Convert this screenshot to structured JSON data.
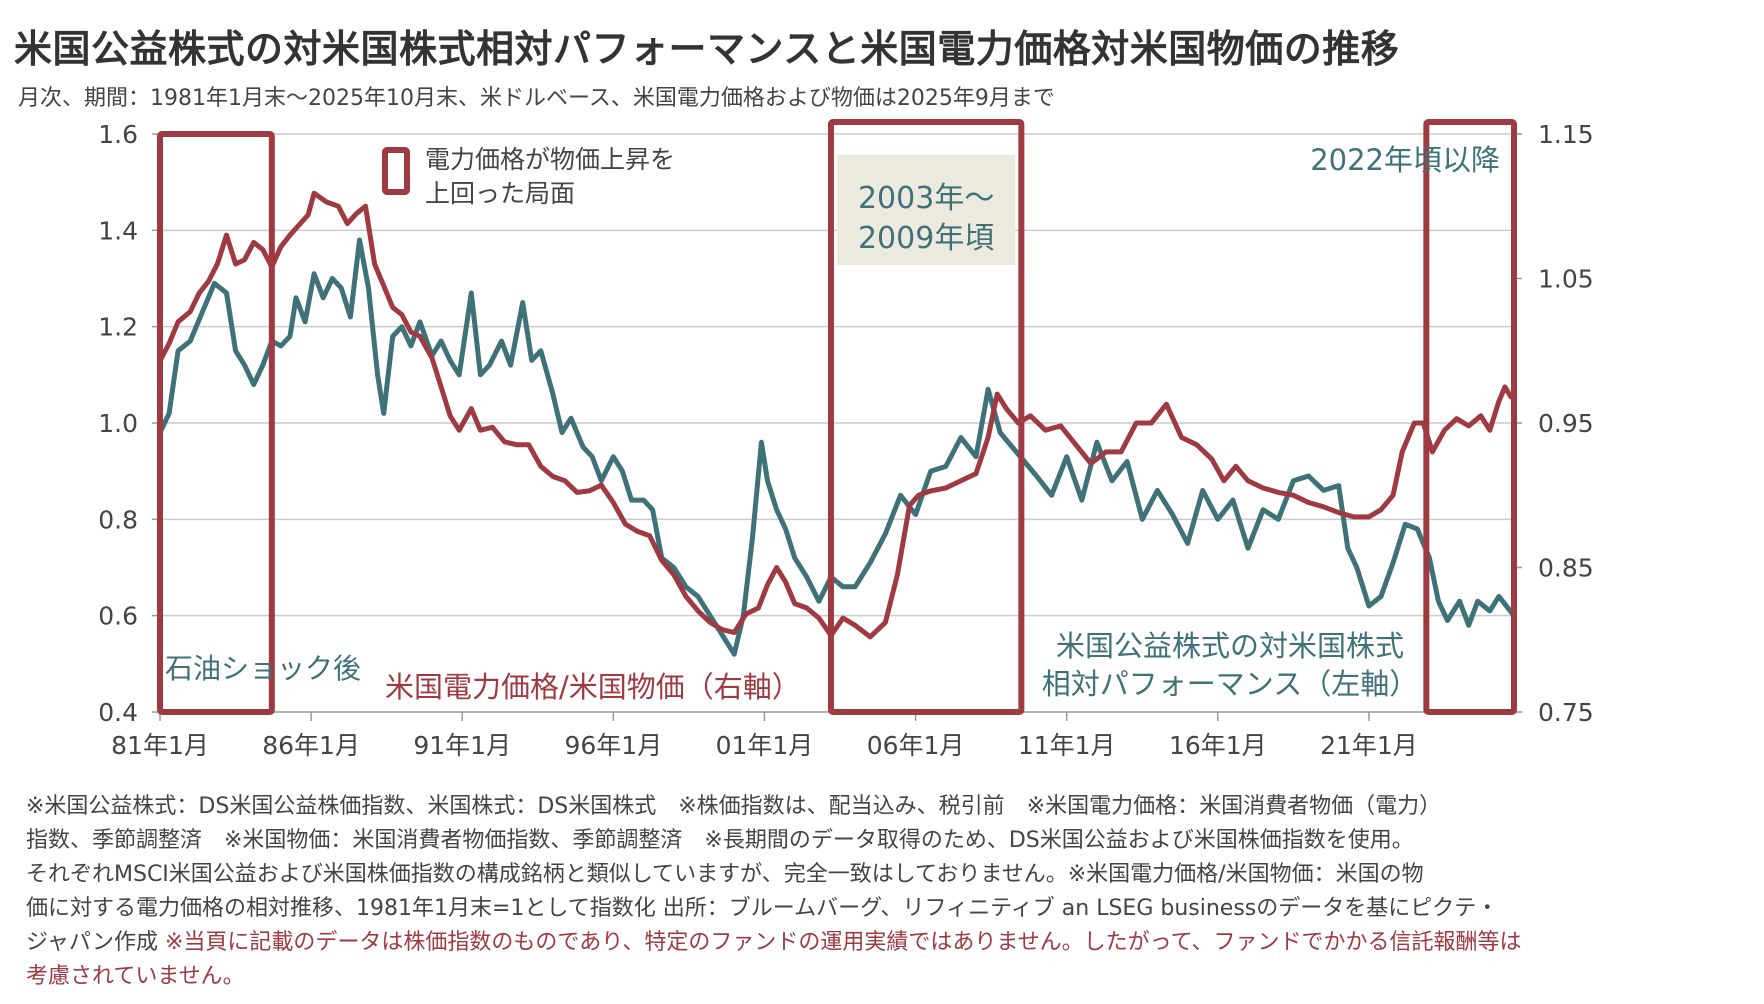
{
  "header": {
    "title": "米国公益株式の対米国株式相対パフォーマンスと米国電力価格対米国物価の推移",
    "subtitle": "月次、期間：1981年1月末～2025年10月末、米ドルベース、米国電力価格および物価は2025年9月まで"
  },
  "colors": {
    "teal": "#3f7179",
    "red": "#a03a42",
    "highlight_bg": "#ece9df",
    "grid": "#cccccc",
    "axis": "#999999"
  },
  "chart_data": {
    "type": "line",
    "title": "米国公益株式の対米国株式相対パフォーマンスと米国電力価格対米国物価の推移",
    "xlabel": "",
    "x_range": [
      1981.0,
      2025.8
    ],
    "x_ticks": [
      {
        "x": 1981.0,
        "label": "81年1月"
      },
      {
        "x": 1986.0,
        "label": "86年1月"
      },
      {
        "x": 1991.0,
        "label": "91年1月"
      },
      {
        "x": 1996.0,
        "label": "96年1月"
      },
      {
        "x": 2001.0,
        "label": "01年1月"
      },
      {
        "x": 2006.0,
        "label": "06年1月"
      },
      {
        "x": 2011.0,
        "label": "11年1月"
      },
      {
        "x": 2016.0,
        "label": "16年1月"
      },
      {
        "x": 2021.0,
        "label": "21年1月"
      }
    ],
    "y_left": {
      "range": [
        0.4,
        1.6
      ],
      "ticks": [
        "0.4",
        "0.6",
        "0.8",
        "1.0",
        "1.2",
        "1.4",
        "1.6"
      ],
      "tick_values": [
        0.4,
        0.6,
        0.8,
        1.0,
        1.2,
        1.4,
        1.6
      ]
    },
    "y_right": {
      "range": [
        0.75,
        1.15
      ],
      "ticks": [
        "0.75",
        "0.85",
        "0.95",
        "1.05",
        "1.15"
      ],
      "tick_values": [
        0.75,
        0.85,
        0.95,
        1.05,
        1.15
      ]
    },
    "grid": true,
    "series": [
      {
        "name": "米国公益株式の対米国株式相対パフォーマンス（左軸）",
        "axis": "left",
        "color": "#3f7179",
        "x": [
          1981.0,
          1981.3,
          1981.6,
          1982.0,
          1982.4,
          1982.8,
          1983.2,
          1983.5,
          1983.8,
          1984.1,
          1984.4,
          1984.7,
          1985.0,
          1985.3,
          1985.5,
          1985.8,
          1986.1,
          1986.4,
          1986.7,
          1987.0,
          1987.3,
          1987.6,
          1987.9,
          1988.2,
          1988.4,
          1988.7,
          1989.0,
          1989.3,
          1989.6,
          1990.0,
          1990.3,
          1990.6,
          1990.9,
          1991.3,
          1991.6,
          1991.9,
          1992.3,
          1992.6,
          1993.0,
          1993.3,
          1993.6,
          1994.0,
          1994.3,
          1994.6,
          1995.0,
          1995.3,
          1995.6,
          1996.0,
          1996.3,
          1996.6,
          1997.0,
          1997.3,
          1997.6,
          1998.0,
          1998.4,
          1998.8,
          1999.2,
          1999.6,
          2000.0,
          2000.3,
          2000.6,
          2000.9,
          2001.1,
          2001.4,
          2001.7,
          2002.0,
          2002.4,
          2002.8,
          2003.2,
          2003.6,
          2004.0,
          2004.5,
          2005.0,
          2005.5,
          2006.0,
          2006.5,
          2007.0,
          2007.5,
          2008.0,
          2008.4,
          2008.8,
          2009.2,
          2009.6,
          2010.0,
          2010.5,
          2011.0,
          2011.5,
          2012.0,
          2012.5,
          2013.0,
          2013.5,
          2014.0,
          2014.5,
          2015.0,
          2015.5,
          2016.0,
          2016.5,
          2017.0,
          2017.5,
          2018.0,
          2018.5,
          2019.0,
          2019.5,
          2020.0,
          2020.3,
          2020.6,
          2021.0,
          2021.4,
          2021.8,
          2022.2,
          2022.6,
          2023.0,
          2023.3,
          2023.6,
          2024.0,
          2024.3,
          2024.6,
          2025.0,
          2025.3,
          2025.8
        ],
        "values": [
          0.98,
          1.02,
          1.15,
          1.17,
          1.23,
          1.29,
          1.27,
          1.15,
          1.12,
          1.08,
          1.12,
          1.17,
          1.16,
          1.18,
          1.26,
          1.21,
          1.31,
          1.26,
          1.3,
          1.28,
          1.22,
          1.38,
          1.28,
          1.1,
          1.02,
          1.18,
          1.2,
          1.16,
          1.21,
          1.14,
          1.17,
          1.13,
          1.1,
          1.27,
          1.1,
          1.12,
          1.17,
          1.12,
          1.25,
          1.13,
          1.15,
          1.06,
          0.98,
          1.01,
          0.95,
          0.93,
          0.88,
          0.93,
          0.9,
          0.84,
          0.84,
          0.82,
          0.72,
          0.7,
          0.66,
          0.64,
          0.6,
          0.56,
          0.52,
          0.6,
          0.76,
          0.96,
          0.88,
          0.82,
          0.78,
          0.72,
          0.68,
          0.63,
          0.68,
          0.66,
          0.66,
          0.71,
          0.77,
          0.85,
          0.81,
          0.9,
          0.91,
          0.97,
          0.93,
          1.07,
          0.98,
          0.95,
          0.92,
          0.89,
          0.85,
          0.93,
          0.84,
          0.96,
          0.88,
          0.92,
          0.8,
          0.86,
          0.81,
          0.75,
          0.86,
          0.8,
          0.84,
          0.74,
          0.82,
          0.8,
          0.88,
          0.89,
          0.86,
          0.87,
          0.74,
          0.7,
          0.62,
          0.64,
          0.71,
          0.79,
          0.78,
          0.72,
          0.63,
          0.59,
          0.63,
          0.58,
          0.63,
          0.61,
          0.64,
          0.6
        ]
      },
      {
        "name": "米国電力価格/米国物価（右軸）",
        "axis": "right",
        "color": "#a03a42",
        "x": [
          1981.0,
          1981.3,
          1981.6,
          1982.0,
          1982.3,
          1982.6,
          1982.9,
          1983.2,
          1983.5,
          1983.8,
          1984.1,
          1984.4,
          1984.7,
          1985.0,
          1985.3,
          1985.6,
          1985.9,
          1986.1,
          1986.5,
          1986.9,
          1987.2,
          1987.5,
          1987.8,
          1988.1,
          1988.4,
          1988.7,
          1989.0,
          1989.3,
          1989.6,
          1990.0,
          1990.3,
          1990.6,
          1990.9,
          1991.3,
          1991.6,
          1992.0,
          1992.4,
          1992.8,
          1993.2,
          1993.6,
          1994.0,
          1994.4,
          1994.8,
          1995.2,
          1995.6,
          1996.0,
          1996.4,
          1996.8,
          1997.2,
          1997.6,
          1998.0,
          1998.4,
          1998.8,
          1999.2,
          1999.6,
          2000.0,
          2000.4,
          2000.8,
          2001.1,
          2001.4,
          2001.7,
          2002.0,
          2002.4,
          2002.8,
          2003.2,
          2003.6,
          2004.0,
          2004.5,
          2005.0,
          2005.4,
          2005.8,
          2006.1,
          2006.5,
          2007.0,
          2007.5,
          2008.0,
          2008.4,
          2008.7,
          2009.0,
          2009.4,
          2009.8,
          2010.3,
          2010.8,
          2011.3,
          2011.8,
          2012.3,
          2012.8,
          2013.3,
          2013.8,
          2014.3,
          2014.8,
          2015.3,
          2015.8,
          2016.2,
          2016.6,
          2017.0,
          2017.5,
          2018.0,
          2018.5,
          2019.0,
          2019.5,
          2020.0,
          2020.5,
          2021.0,
          2021.4,
          2021.8,
          2022.1,
          2022.5,
          2022.8,
          2023.1,
          2023.5,
          2023.9,
          2024.3,
          2024.7,
          2025.0,
          2025.3,
          2025.5,
          2025.7
        ],
        "values": [
          0.993,
          1.005,
          1.02,
          1.027,
          1.04,
          1.048,
          1.06,
          1.08,
          1.06,
          1.063,
          1.075,
          1.07,
          1.058,
          1.072,
          1.08,
          1.087,
          1.094,
          1.109,
          1.103,
          1.1,
          1.088,
          1.095,
          1.1,
          1.06,
          1.045,
          1.03,
          1.025,
          1.013,
          1.01,
          0.995,
          0.975,
          0.955,
          0.945,
          0.96,
          0.945,
          0.947,
          0.937,
          0.935,
          0.935,
          0.92,
          0.913,
          0.91,
          0.902,
          0.903,
          0.907,
          0.895,
          0.88,
          0.875,
          0.872,
          0.855,
          0.845,
          0.83,
          0.82,
          0.812,
          0.807,
          0.805,
          0.818,
          0.822,
          0.838,
          0.85,
          0.84,
          0.825,
          0.822,
          0.815,
          0.803,
          0.815,
          0.81,
          0.802,
          0.812,
          0.845,
          0.893,
          0.9,
          0.903,
          0.905,
          0.91,
          0.915,
          0.94,
          0.97,
          0.96,
          0.95,
          0.955,
          0.945,
          0.948,
          0.935,
          0.922,
          0.93,
          0.93,
          0.95,
          0.95,
          0.963,
          0.94,
          0.935,
          0.925,
          0.91,
          0.92,
          0.91,
          0.905,
          0.902,
          0.9,
          0.895,
          0.892,
          0.888,
          0.885,
          0.885,
          0.89,
          0.9,
          0.93,
          0.95,
          0.95,
          0.93,
          0.945,
          0.953,
          0.948,
          0.955,
          0.945,
          0.965,
          0.975,
          0.968
        ]
      }
    ],
    "highlight_boxes": [
      {
        "label": "石油ショック後",
        "x_start": 1981.0,
        "x_end": 1984.7
      },
      {
        "label": "2003年～\n2009年頃",
        "x_start": 2003.2,
        "x_end": 2009.5
      },
      {
        "label": "2022年頃以降",
        "x_start": 2022.9,
        "x_end": 2025.8
      }
    ],
    "legend": {
      "placement": "top-left",
      "entries": [
        {
          "label_line1": "電力価格が物価上昇を",
          "label_line2": "上回った局面",
          "marker": "red-outline-box"
        }
      ]
    },
    "annotations": [
      {
        "id": "oil-shock",
        "text": "石油ショック後",
        "color": "teal"
      },
      {
        "id": "period-2003",
        "text_line1": "2003年～",
        "text_line2": "2009年頃",
        "color": "teal"
      },
      {
        "id": "period-2022",
        "text": "2022年頃以降",
        "color": "teal"
      },
      {
        "id": "red-series-label",
        "text": "米国電力価格/米国物価（右軸）",
        "color": "red"
      },
      {
        "id": "teal-series-label",
        "text_line1": "米国公益株式の対米国株式",
        "text_line2": "相対パフォーマンス（左軸）",
        "color": "teal"
      }
    ]
  },
  "footnotes": {
    "line1": "※米国公益株式：DS米国公益株価指数、米国株式：DS米国株式　※株価指数は、配当込み、税引前　※米国電力価格：米国消費者物価（電力）",
    "line2": "指数、季節調整済　※米国物価：米国消費者物価指数、季節調整済　※長期間のデータ取得のため、DS米国公益および米国株価指数を使用。",
    "line3": "それぞれMSCI米国公益および米国株価指数の構成銘柄と類似していますが、完全一致はしておりません。※米国電力価格/米国物価：米国の物",
    "line4": "価に対する電力価格の相対推移、1981年1月末=1として指数化 出所：ブルームバーグ、リフィニティブ an LSEG businessのデータを基にピクテ・",
    "line5_normal": "ジャパン作成 ",
    "line5_red": "※当頁に記載のデータは株価指数のものであり、特定のファンドの運用実績ではありません。したがって、ファンドでかかる信託報酬等は",
    "line6_red": "考慮されていません。"
  }
}
